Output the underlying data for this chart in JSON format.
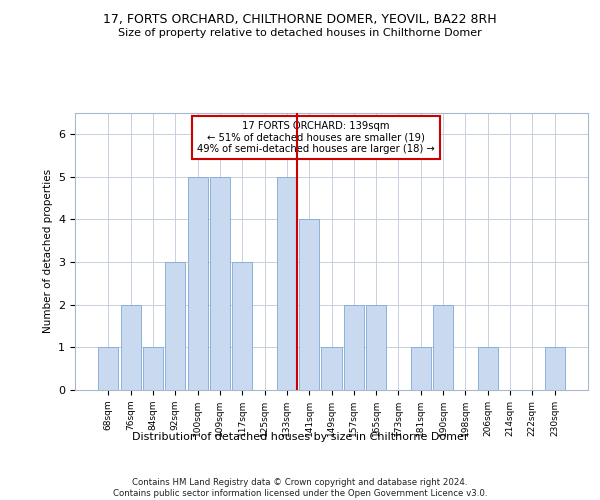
{
  "title1": "17, FORTS ORCHARD, CHILTHORNE DOMER, YEOVIL, BA22 8RH",
  "title2": "Size of property relative to detached houses in Chilthorne Domer",
  "xlabel": "Distribution of detached houses by size in Chilthorne Domer",
  "ylabel": "Number of detached properties",
  "footer": "Contains HM Land Registry data © Crown copyright and database right 2024.\nContains public sector information licensed under the Open Government Licence v3.0.",
  "bar_labels": [
    "68sqm",
    "76sqm",
    "84sqm",
    "92sqm",
    "100sqm",
    "109sqm",
    "117sqm",
    "125sqm",
    "133sqm",
    "141sqm",
    "149sqm",
    "157sqm",
    "165sqm",
    "173sqm",
    "181sqm",
    "190sqm",
    "198sqm",
    "206sqm",
    "214sqm",
    "222sqm",
    "230sqm"
  ],
  "bar_values": [
    1,
    2,
    1,
    3,
    5,
    5,
    3,
    0,
    5,
    4,
    1,
    2,
    2,
    0,
    1,
    2,
    0,
    1,
    0,
    0,
    1
  ],
  "bar_color": "#c9d9f0",
  "bar_edgecolor": "#7fa8d4",
  "highlight_line_index": 8,
  "annotation_text": "17 FORTS ORCHARD: 139sqm\n← 51% of detached houses are smaller (19)\n49% of semi-detached houses are larger (18) →",
  "red_line_color": "#cc0000",
  "ylim": [
    0,
    6.5
  ],
  "yticks": [
    0,
    1,
    2,
    3,
    4,
    5,
    6
  ],
  "background_color": "#ffffff",
  "grid_color": "#c8d0e0"
}
